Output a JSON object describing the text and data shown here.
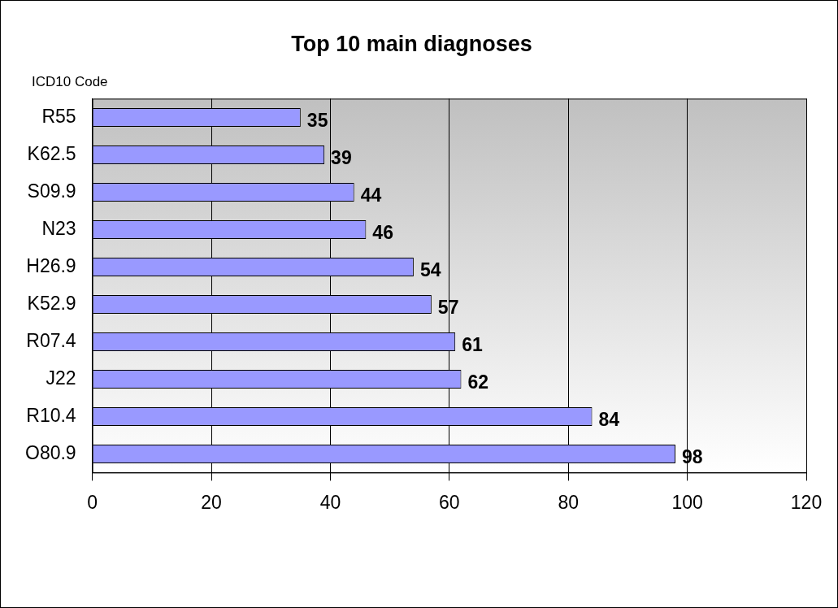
{
  "chart_data": {
    "type": "bar",
    "orientation": "horizontal",
    "title": "Top 10 main diagnoses",
    "ylabel": "ICD10 Code",
    "categories": [
      "R55",
      "K62.5",
      "S09.9",
      "N23",
      "H26.9",
      "K52.9",
      "R07.4",
      "J22",
      "R10.4",
      "O80.9"
    ],
    "values": [
      35,
      39,
      44,
      46,
      54,
      57,
      61,
      62,
      84,
      98
    ],
    "color": "#9999ff",
    "xlim": [
      0,
      120
    ],
    "xticks": [
      0,
      20,
      40,
      60,
      80,
      100,
      120
    ],
    "grid": "x",
    "data_labels": true,
    "legend": false
  }
}
